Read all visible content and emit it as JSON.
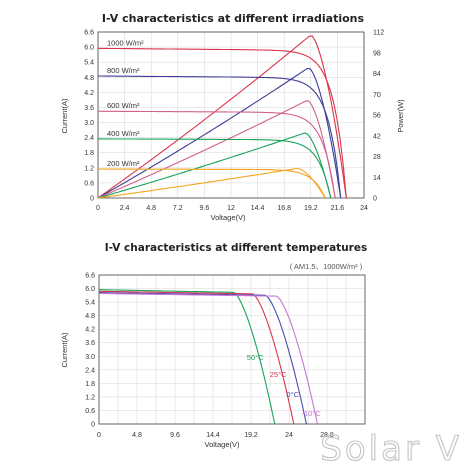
{
  "watermark": "Solar V",
  "chart_data": [
    {
      "type": "line",
      "title": "I-V characteristics at different irradiations",
      "xlabel": "Voltage(V)",
      "ylabel": "Current(A)",
      "y2label": "Power(W)",
      "xlim": [
        0,
        24
      ],
      "ylim": [
        0,
        6.6
      ],
      "y2lim": [
        0,
        112
      ],
      "xticks": [
        "0",
        "2.4",
        "4.8",
        "7.2",
        "9.6",
        "12",
        "14.4",
        "16.8",
        "19.2",
        "21.6",
        "24"
      ],
      "yticks": [
        "0",
        "0.6",
        "1.2",
        "1.8",
        "2.4",
        "3.0",
        "3.6",
        "4.2",
        "4.8",
        "5.4",
        "6.0",
        "6.6"
      ],
      "y2ticks": [
        "0",
        "14",
        "28",
        "42",
        "56",
        "70",
        "84",
        "98",
        "112"
      ],
      "grid": true,
      "iv_series": [
        {
          "label": "1000 W/m²",
          "color": "#d9354c",
          "isc": 5.95,
          "voc": 22.4,
          "vmp": 18.8,
          "imp": 5.85
        },
        {
          "label": "800 W/m²",
          "color": "#3d3d96",
          "isc": 4.85,
          "voc": 21.9,
          "vmp": 18.5,
          "imp": 4.75
        },
        {
          "label": "600 W/m²",
          "color": "#d2608c",
          "isc": 3.45,
          "voc": 21.4,
          "vmp": 18.3,
          "imp": 3.35
        },
        {
          "label": "400 W/m²",
          "color": "#18a35a",
          "isc": 2.35,
          "voc": 21.0,
          "vmp": 18.1,
          "imp": 2.25
        },
        {
          "label": "200 W/m²",
          "color": "#f2a51f",
          "isc": 1.15,
          "voc": 20.5,
          "vmp": 17.6,
          "imp": 1.08
        }
      ],
      "power_series": [
        {
          "color": "#d9354c",
          "pmax": 110,
          "vmp": 19.2,
          "voc": 22.4
        },
        {
          "color": "#3d3d96",
          "pmax": 88,
          "vmp": 19.0,
          "voc": 21.9
        },
        {
          "color": "#d2608c",
          "pmax": 66,
          "vmp": 18.9,
          "voc": 21.4
        },
        {
          "color": "#18a35a",
          "pmax": 44,
          "vmp": 18.7,
          "voc": 21.0
        },
        {
          "color": "#f2a51f",
          "pmax": 20,
          "vmp": 18.0,
          "voc": 20.5
        }
      ]
    },
    {
      "type": "line",
      "title": "I-V characteristics at different temperatures",
      "subtitle": "( AM1.5、1000W/m² )",
      "xlabel": "Voltage(V)",
      "ylabel": "Current(A)",
      "xlim": [
        0,
        33.6
      ],
      "ylim": [
        0,
        6.6
      ],
      "xticks": [
        "0",
        "4.8",
        "9.6",
        "14.4",
        "19.2",
        "24",
        "28.8"
      ],
      "yticks": [
        "0",
        "0.6",
        "1.2",
        "1.8",
        "2.4",
        "3.0",
        "3.6",
        "4.2",
        "4.8",
        "5.4",
        "6.0",
        "6.6"
      ],
      "grid": true,
      "series": [
        {
          "label": "50°C",
          "color": "#18a35a",
          "isc": 5.95,
          "voc": 22.2,
          "knee": 17.0
        },
        {
          "label": "25°C",
          "color": "#d9354c",
          "isc": 5.88,
          "voc": 24.6,
          "knee": 19.4
        },
        {
          "label": "0°C",
          "color": "#4d4dae",
          "isc": 5.82,
          "voc": 26.2,
          "knee": 21.0
        },
        {
          "label": "-10°C",
          "color": "#c777d6",
          "isc": 5.78,
          "voc": 27.6,
          "knee": 22.4
        }
      ]
    }
  ]
}
